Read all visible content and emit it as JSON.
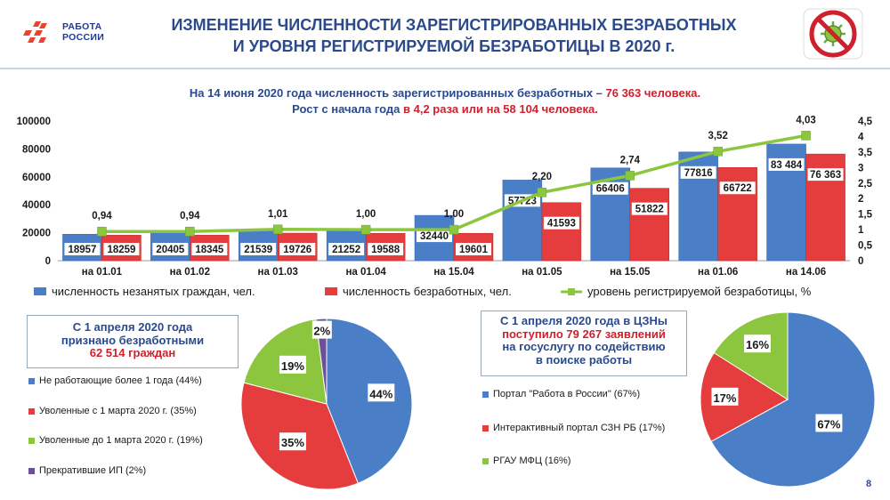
{
  "header": {
    "logo_line1": "РАБОТА",
    "logo_line2": "РОССИИ",
    "title_line1": "ИЗМЕНЕНИЕ ЧИСЛЕННОСТИ ЗАРЕГИСТРИРОВАННЫХ БЕЗРАБОТНЫХ",
    "title_line2": "И УРОВНЯ РЕГИСТРИРУЕМОЙ  БЕЗРАБОТИЦЫ В 2020 г."
  },
  "subtitle": {
    "line1_a": "На 14 июня 2020 года численность зарегистрированных безработных – ",
    "line1_b": "76 363 человека.",
    "line2_a": "Рост с начала года ",
    "line2_b": "в 4,2 раза или на 58 104 человека."
  },
  "colors": {
    "blue": "#4a7fc8",
    "red": "#e53d3d",
    "green": "#8cc63f",
    "purple": "#6b4f9a",
    "title": "#2a4a8c"
  },
  "chart_data": [
    {
      "type": "bar",
      "categories": [
        "на 01.01",
        "на 01.02",
        "на 01.03",
        "на 01.04",
        "на 15.04",
        "на 01.05",
        "на 15.05",
        "на 01.06",
        "на 14.06"
      ],
      "series": [
        {
          "name": "численность незанятых граждан, чел.",
          "values": [
            18957,
            20405,
            21539,
            21252,
            32440,
            57723,
            66406,
            77816,
            83484
          ],
          "labels": [
            "18957",
            "20405",
            "21539",
            "21252",
            "32440",
            "57723",
            "66406",
            "77816",
            "83 484"
          ]
        },
        {
          "name": "численность безработных, чел.",
          "values": [
            18259,
            18345,
            19726,
            19588,
            19601,
            41593,
            51822,
            66722,
            76363
          ],
          "labels": [
            "18259",
            "18345",
            "19726",
            "19588",
            "19601",
            "41593",
            "51822",
            "66722",
            "76 363"
          ]
        },
        {
          "name": "уровень регистрируемой безработицы, %",
          "axis": "right",
          "chart_type": "line",
          "values": [
            0.94,
            0.94,
            1.01,
            1.0,
            1.0,
            2.2,
            2.74,
            3.52,
            4.03
          ],
          "labels": [
            "0,94",
            "0,94",
            "1,01",
            "1,00",
            "1,00",
            "2,20",
            "2,74",
            "3,52",
            "4,03"
          ]
        }
      ],
      "y_left": {
        "range": [
          0,
          100000
        ],
        "ticks": [
          "0",
          "20000",
          "40000",
          "60000",
          "80000",
          "100000"
        ]
      },
      "y_right": {
        "range": [
          0,
          4.5
        ],
        "ticks": [
          "0",
          "0,5",
          "1",
          "1,5",
          "2",
          "2,5",
          "3",
          "3,5",
          "4",
          "4,5"
        ]
      },
      "legend": "bottom"
    },
    {
      "type": "pie",
      "title": [
        "С 1 апреля 2020 года",
        "признано безработными",
        "62 514 граждан"
      ],
      "categories": [
        "Не работающие более 1 года (44%)",
        "Уволенные с 1 марта 2020 г. (35%)",
        "Уволенные до 1 марта 2020 г. (19%)",
        "Прекратившие ИП (2%)"
      ],
      "values": [
        44,
        35,
        19,
        2
      ],
      "labels": [
        "44%",
        "35%",
        "19%",
        "2%"
      ]
    },
    {
      "type": "pie",
      "title": [
        "С 1 апреля 2020 года в ЦЗНы",
        "поступило 79 267 заявлений",
        "на госуслугу по содействию",
        "в поиске работы"
      ],
      "categories": [
        "Портал \"Работа в России\" (67%)",
        "Интерактивный портал СЗН РБ (17%)",
        "РГАУ МФЦ (16%)"
      ],
      "values": [
        67,
        17,
        16
      ],
      "labels": [
        "67%",
        "17%",
        "16%"
      ]
    }
  ],
  "page_number": "8"
}
